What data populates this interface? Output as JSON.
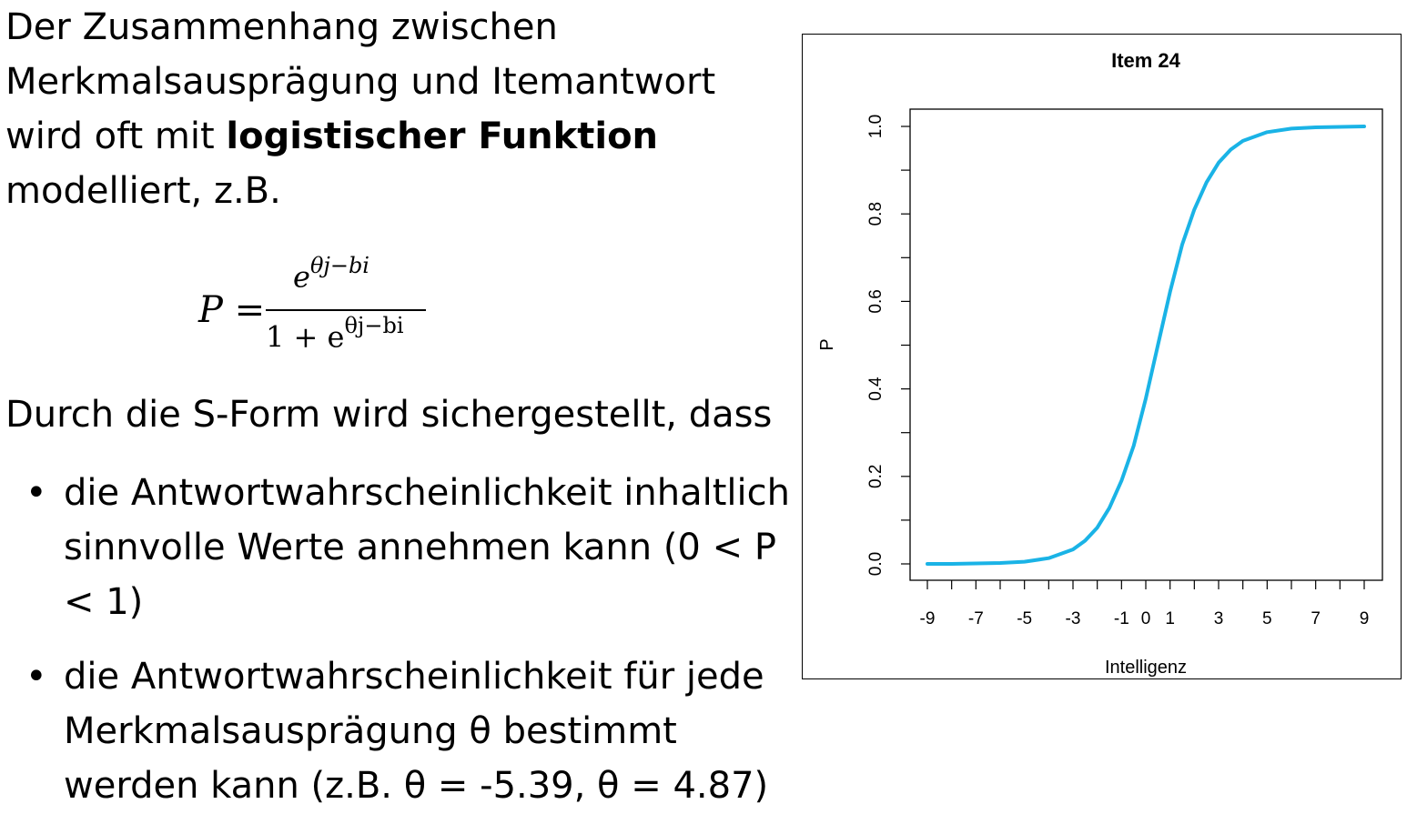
{
  "text": {
    "intro_lines": [
      "Der Zusammenhang zwischen",
      "Merkmalsausprägung und Itemantwort",
      "wird oft mit "
    ],
    "intro_bold": "logistischer Funktion",
    "intro_end": "modelliert, z.B.",
    "formula_lhs": "P =",
    "formula_num": "e",
    "formula_exp": "θj−bi",
    "formula_den": "1 + e",
    "durch": "Durch die S-Form wird sichergestellt, dass",
    "bullet_1": "die Antwortwahrscheinlichkeit inhaltlich sinnvolle Werte annehmen kann (0 < P < 1)",
    "bullet_2": "die Antwortwahrscheinlichkeit für jede Merkmalsausprägung θ bestimmt werden kann (z.B. θ = -5.39, θ = 4.87)",
    "bullet_glyph": "•"
  },
  "chart_data": {
    "type": "line",
    "title": "Item 24",
    "xlabel": "Intelligenz",
    "ylabel": "P",
    "xlim": [
      -9,
      9
    ],
    "ylim": [
      0,
      1
    ],
    "x_ticks_labeled": [
      "-9",
      "-7",
      "-5",
      "-3",
      "-1",
      "0",
      "1",
      "3",
      "5",
      "7",
      "9"
    ],
    "x_ticks_all": [
      -9,
      -8,
      -7,
      -6,
      -5,
      -4,
      -3,
      -2,
      -1,
      0,
      1,
      2,
      3,
      4,
      5,
      6,
      7,
      8,
      9
    ],
    "y_ticks": [
      "0.0",
      "0.2",
      "0.4",
      "0.6",
      "0.8",
      "1.0"
    ],
    "y_minor": [
      0.1,
      0.3,
      0.5,
      0.7,
      0.9
    ],
    "series": [
      {
        "color": "#1ab3e6",
        "x": [
          -9,
          -8,
          -7,
          -6,
          -5,
          -4,
          -3,
          -2.5,
          -2,
          -1.5,
          -1,
          -0.5,
          0,
          0.5,
          1,
          1.5,
          2,
          2.5,
          3,
          3.5,
          4,
          5,
          6,
          7,
          8,
          9
        ],
        "y": [
          0.0,
          0.0,
          0.001,
          0.002,
          0.005,
          0.013,
          0.033,
          0.053,
          0.083,
          0.128,
          0.19,
          0.27,
          0.378,
          0.5,
          0.622,
          0.73,
          0.81,
          0.872,
          0.917,
          0.947,
          0.967,
          0.987,
          0.995,
          0.998,
          0.999,
          1.0
        ]
      }
    ]
  }
}
